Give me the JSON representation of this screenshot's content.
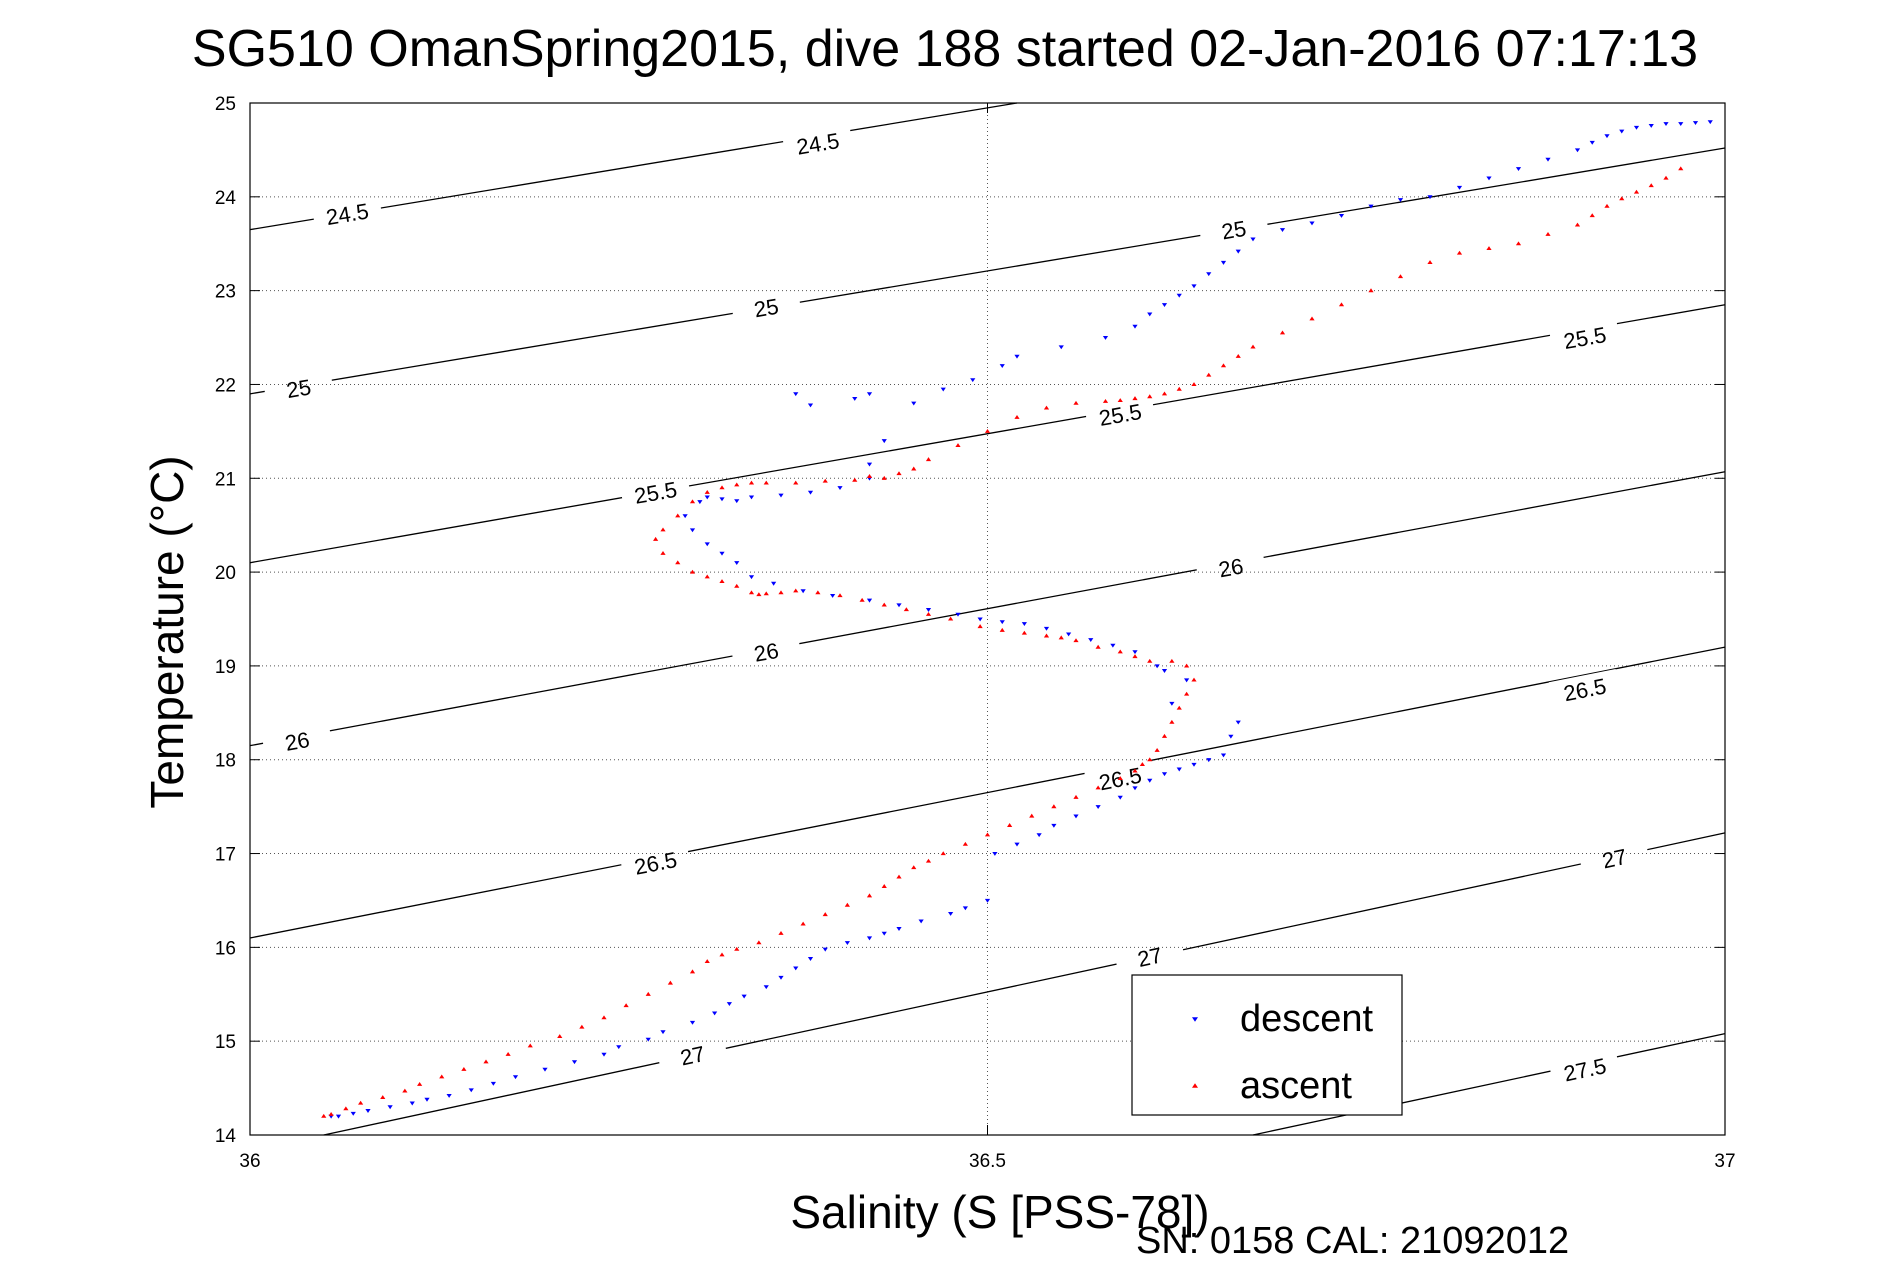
{
  "chart_data": {
    "type": "scatter",
    "title": "SG510 OmanSpring2015, dive 188 started 02-Jan-2016 07:17:13",
    "xlabel": "Salinity (S [PSS-78])",
    "ylabel": "Temperature (°C)",
    "xlim": [
      36,
      37
    ],
    "ylim": [
      14,
      25
    ],
    "xticks": [
      36,
      36.5,
      37
    ],
    "xtick_labels": [
      "36",
      "36.5",
      "37"
    ],
    "yticks": [
      14,
      15,
      16,
      17,
      18,
      19,
      20,
      21,
      22,
      23,
      24,
      25
    ],
    "ytick_labels": [
      "14",
      "15",
      "16",
      "17",
      "18",
      "19",
      "20",
      "21",
      "22",
      "23",
      "24",
      "25"
    ],
    "grid": true,
    "legend_position": "bottom-right",
    "footer": "SN: 0158  CAL: 21092012",
    "contours": [
      {
        "level": 24.5,
        "label": "24.5",
        "start": [
          36,
          23.65
        ],
        "end": [
          36.52,
          25.0
        ],
        "label_positions": [
          [
            36.066,
            23.82
          ],
          [
            36.385,
            24.57
          ]
        ]
      },
      {
        "level": 25,
        "label": "25",
        "start": [
          36,
          21.9
        ],
        "end": [
          37,
          24.52
        ],
        "label_positions": [
          [
            36.033,
            21.96
          ],
          [
            36.35,
            22.82
          ],
          [
            36.667,
            23.65
          ]
        ]
      },
      {
        "level": 25.5,
        "label": "25.5",
        "start": [
          36,
          20.1
        ],
        "end": [
          37,
          22.85
        ],
        "label_positions": [
          [
            36.275,
            20.85
          ],
          [
            36.59,
            21.68
          ],
          [
            36.905,
            22.5
          ]
        ]
      },
      {
        "level": 26,
        "label": "26",
        "start": [
          36,
          18.15
        ],
        "end": [
          37,
          21.07
        ],
        "label_positions": [
          [
            36.032,
            18.2
          ],
          [
            36.35,
            19.15
          ],
          [
            36.665,
            20.05
          ]
        ]
      },
      {
        "level": 26.5,
        "label": "26.5",
        "start": [
          36,
          16.1
        ],
        "end": [
          37,
          19.2
        ],
        "label_positions": [
          [
            36.275,
            16.9
          ],
          [
            36.59,
            17.8
          ],
          [
            36.905,
            18.75
          ]
        ]
      },
      {
        "level": 27,
        "label": "27",
        "start": [
          36.05,
          14.0
        ],
        "end": [
          37,
          17.22
        ],
        "label_positions": [
          [
            36.3,
            14.85
          ],
          [
            36.61,
            15.9
          ],
          [
            36.925,
            16.95
          ]
        ]
      },
      {
        "level": 27.5,
        "label": "27.5",
        "start": [
          36.68,
          14.0
        ],
        "end": [
          37,
          15.08
        ],
        "label_positions": [
          [
            36.905,
            14.7
          ]
        ]
      }
    ],
    "series": [
      {
        "name": "descent",
        "color": "#0000ff",
        "marker": "triangle-down",
        "x": [
          36.055,
          36.06,
          36.07,
          36.08,
          36.095,
          36.11,
          36.12,
          36.135,
          36.15,
          36.165,
          36.18,
          36.2,
          36.22,
          36.24,
          36.25,
          36.27,
          36.28,
          36.3,
          36.315,
          36.325,
          36.335,
          36.35,
          36.36,
          36.37,
          36.38,
          36.39,
          36.405,
          36.42,
          36.43,
          36.44,
          36.455,
          36.475,
          36.485,
          36.5,
          36.505,
          36.52,
          36.535,
          36.545,
          36.56,
          36.575,
          36.59,
          36.6,
          36.61,
          36.62,
          36.63,
          36.64,
          36.65,
          36.66,
          36.665,
          36.67,
          36.625,
          36.635,
          36.62,
          36.615,
          36.6,
          36.585,
          36.57,
          36.555,
          36.54,
          36.525,
          36.51,
          36.495,
          36.48,
          36.46,
          36.44,
          36.42,
          36.395,
          36.375,
          36.355,
          36.34,
          36.33,
          36.32,
          36.31,
          36.3,
          36.295,
          36.305,
          36.31,
          36.32,
          36.33,
          36.34,
          36.36,
          36.38,
          36.4,
          36.42,
          36.42,
          36.43,
          36.45,
          36.38,
          36.37,
          36.41,
          36.42,
          36.47,
          36.49,
          36.51,
          36.52,
          36.55,
          36.58,
          36.6,
          36.61,
          36.62,
          36.63,
          36.64,
          36.65,
          36.66,
          36.67,
          36.68,
          36.7,
          36.72,
          36.74,
          36.76,
          36.78,
          36.8,
          36.82,
          36.84,
          36.86,
          36.88,
          36.9,
          36.91,
          36.92,
          36.93,
          36.94,
          36.95,
          36.96,
          36.97,
          36.98,
          36.99
        ],
        "y": [
          14.2,
          14.2,
          14.23,
          14.26,
          14.3,
          14.34,
          14.38,
          14.42,
          14.48,
          14.55,
          14.62,
          14.7,
          14.78,
          14.86,
          14.94,
          15.02,
          15.1,
          15.2,
          15.3,
          15.4,
          15.48,
          15.58,
          15.68,
          15.78,
          15.88,
          15.98,
          16.05,
          16.1,
          16.15,
          16.2,
          16.28,
          16.36,
          16.42,
          16.5,
          17.0,
          17.1,
          17.2,
          17.3,
          17.4,
          17.5,
          17.6,
          17.7,
          17.78,
          17.85,
          17.9,
          17.95,
          18.0,
          18.05,
          18.25,
          18.4,
          18.6,
          18.85,
          18.95,
          19.0,
          19.15,
          19.22,
          19.28,
          19.34,
          19.4,
          19.45,
          19.47,
          19.5,
          19.55,
          19.6,
          19.65,
          19.7,
          19.75,
          19.8,
          19.88,
          19.95,
          20.1,
          20.2,
          20.3,
          20.45,
          20.6,
          20.75,
          20.8,
          20.78,
          20.76,
          20.8,
          20.82,
          20.85,
          20.9,
          21.0,
          21.15,
          21.4,
          21.8,
          21.78,
          21.9,
          21.85,
          21.9,
          21.95,
          22.05,
          22.2,
          22.3,
          22.4,
          22.5,
          22.62,
          22.75,
          22.85,
          22.95,
          23.05,
          23.18,
          23.3,
          23.42,
          23.55,
          23.65,
          23.72,
          23.8,
          23.9,
          23.97,
          24.0,
          24.1,
          24.2,
          24.3,
          24.4,
          24.5,
          24.58,
          24.65,
          24.7,
          24.74,
          24.76,
          24.78,
          24.78,
          24.79,
          24.8
        ]
      },
      {
        "name": "ascent",
        "color": "#ff0000",
        "marker": "triangle-up",
        "x": [
          36.05,
          36.055,
          36.065,
          36.075,
          36.09,
          36.105,
          36.115,
          36.13,
          36.145,
          36.16,
          36.175,
          36.19,
          36.21,
          36.225,
          36.24,
          36.255,
          36.27,
          36.285,
          36.3,
          36.31,
          36.32,
          36.33,
          36.345,
          36.36,
          36.375,
          36.39,
          36.405,
          36.42,
          36.43,
          36.44,
          36.45,
          36.46,
          36.47,
          36.485,
          36.5,
          36.515,
          36.53,
          36.545,
          36.56,
          36.575,
          36.59,
          36.6,
          36.605,
          36.61,
          36.615,
          36.62,
          36.625,
          36.63,
          36.635,
          36.64,
          36.635,
          36.625,
          36.61,
          36.6,
          36.59,
          36.575,
          36.56,
          36.55,
          36.54,
          36.525,
          36.51,
          36.495,
          36.475,
          36.46,
          36.445,
          36.43,
          36.415,
          36.4,
          36.385,
          36.37,
          36.36,
          36.35,
          36.345,
          36.34,
          36.33,
          36.32,
          36.31,
          36.3,
          36.29,
          36.28,
          36.275,
          36.28,
          36.29,
          36.3,
          36.31,
          36.32,
          36.33,
          36.34,
          36.35,
          36.37,
          36.39,
          36.41,
          36.43,
          36.42,
          36.44,
          36.45,
          36.46,
          36.48,
          36.5,
          36.52,
          36.54,
          36.56,
          36.58,
          36.59,
          36.6,
          36.61,
          36.62,
          36.63,
          36.64,
          36.65,
          36.66,
          36.67,
          36.68,
          36.7,
          36.72,
          36.74,
          36.76,
          36.78,
          36.8,
          36.82,
          36.84,
          36.86,
          36.88,
          36.9,
          36.91,
          36.92,
          36.93,
          36.94,
          36.95,
          36.96,
          36.97
        ],
        "y": [
          14.2,
          14.22,
          14.28,
          14.34,
          14.4,
          14.47,
          14.54,
          14.62,
          14.7,
          14.78,
          14.86,
          14.95,
          15.05,
          15.15,
          15.25,
          15.38,
          15.5,
          15.62,
          15.74,
          15.85,
          15.92,
          15.98,
          16.05,
          16.15,
          16.25,
          16.35,
          16.45,
          16.55,
          16.65,
          16.75,
          16.85,
          16.92,
          17.0,
          17.1,
          17.2,
          17.3,
          17.4,
          17.5,
          17.6,
          17.7,
          17.8,
          17.88,
          17.95,
          18.0,
          18.1,
          18.25,
          18.4,
          18.55,
          18.7,
          18.85,
          19.0,
          19.05,
          19.05,
          19.1,
          19.15,
          19.2,
          19.27,
          19.3,
          19.32,
          19.35,
          19.38,
          19.42,
          19.5,
          19.55,
          19.6,
          19.65,
          19.7,
          19.75,
          19.78,
          19.8,
          19.78,
          19.77,
          19.76,
          19.78,
          19.85,
          19.9,
          19.95,
          20.0,
          20.1,
          20.2,
          20.35,
          20.45,
          20.6,
          20.75,
          20.85,
          20.9,
          20.93,
          20.95,
          20.95,
          20.95,
          20.97,
          20.98,
          21.0,
          21.02,
          21.05,
          21.1,
          21.2,
          21.35,
          21.5,
          21.65,
          21.75,
          21.8,
          21.82,
          21.83,
          21.85,
          21.87,
          21.9,
          21.95,
          22.0,
          22.1,
          22.2,
          22.3,
          22.4,
          22.55,
          22.7,
          22.85,
          23.0,
          23.15,
          23.3,
          23.4,
          23.45,
          23.5,
          23.6,
          23.7,
          23.8,
          23.9,
          23.98,
          24.05,
          24.12,
          24.2,
          24.3
        ]
      }
    ]
  }
}
